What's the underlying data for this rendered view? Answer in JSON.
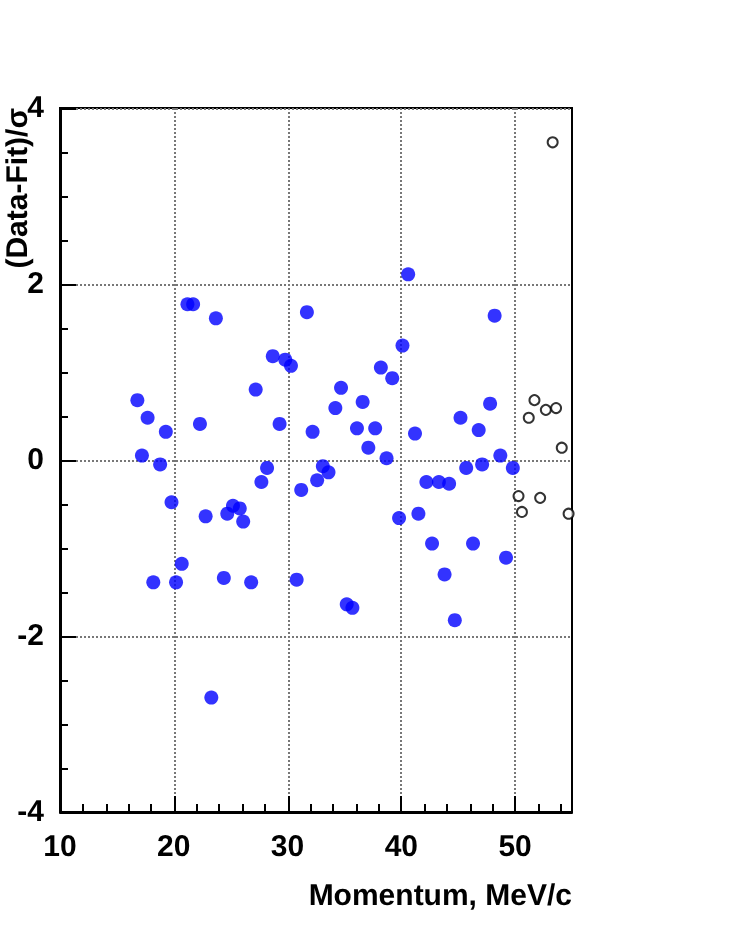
{
  "chart_data": {
    "type": "scatter",
    "xlabel": "Momentum, MeV/c",
    "ylabel": "(Data-Fit)/σ",
    "xlim": [
      10,
      55
    ],
    "xticks": [
      10,
      20,
      30,
      40,
      50
    ],
    "ylim": [
      -4,
      4
    ],
    "yticks": [
      -4,
      -2,
      0,
      2,
      4
    ],
    "grid": true,
    "marker": "circle",
    "series": [
      {
        "color": "#0000ff",
        "x": [
          16.8,
          17.7,
          17.2,
          18.2,
          18.8,
          19.3,
          19.8,
          20.2,
          20.7,
          21.2,
          21.7,
          22.3,
          22.8,
          23.3,
          23.7,
          24.4,
          24.7,
          25.2,
          25.8,
          26.1,
          26.8,
          27.2,
          27.7,
          28.2,
          28.7,
          29.3,
          29.8,
          30.3,
          30.8,
          31.2,
          31.7,
          32.2,
          32.6,
          33.1,
          33.6,
          34.2,
          34.7,
          35.2,
          35.7,
          36.1,
          36.6,
          37.1,
          37.7,
          38.2,
          38.7,
          39.2,
          39.8,
          40.1,
          40.6,
          41.2,
          41.5,
          42.2,
          42.7,
          43.3,
          43.8,
          44.2,
          44.7,
          45.2,
          45.7,
          46.3,
          46.8,
          47.1,
          47.8,
          48.2,
          48.7,
          49.2,
          49.8
        ],
        "values": [
          0.68,
          0.48,
          0.05,
          -1.39,
          -0.05,
          0.32,
          -0.48,
          -1.39,
          -1.18,
          1.77,
          1.77,
          0.41,
          -0.64,
          -2.7,
          1.61,
          -1.34,
          -0.61,
          -0.52,
          -0.55,
          -0.7,
          -1.39,
          0.8,
          -0.25,
          -0.09,
          1.18,
          0.41,
          1.14,
          1.07,
          -1.36,
          -0.34,
          1.68,
          0.32,
          -0.23,
          -0.07,
          -0.14,
          0.59,
          0.82,
          -1.64,
          -1.68,
          0.36,
          0.66,
          0.14,
          0.36,
          1.05,
          0.02,
          0.93,
          -0.66,
          1.3,
          2.11,
          0.3,
          -0.61,
          -0.25,
          -0.95,
          -0.25,
          -1.3,
          -0.27,
          -1.82,
          0.48,
          -0.09,
          -0.95,
          0.34,
          -0.05,
          0.64,
          1.64,
          0.05,
          -1.11,
          -0.09
        ]
      },
      {
        "color": "#000000",
        "x": [
          50.3,
          50.6,
          51.2,
          51.7,
          52.2,
          52.7,
          53.3,
          53.6,
          54.1,
          54.7
        ],
        "values": [
          -0.41,
          -0.59,
          0.48,
          0.68,
          -0.43,
          0.57,
          3.61,
          0.59,
          0.14,
          -0.61
        ]
      }
    ]
  }
}
